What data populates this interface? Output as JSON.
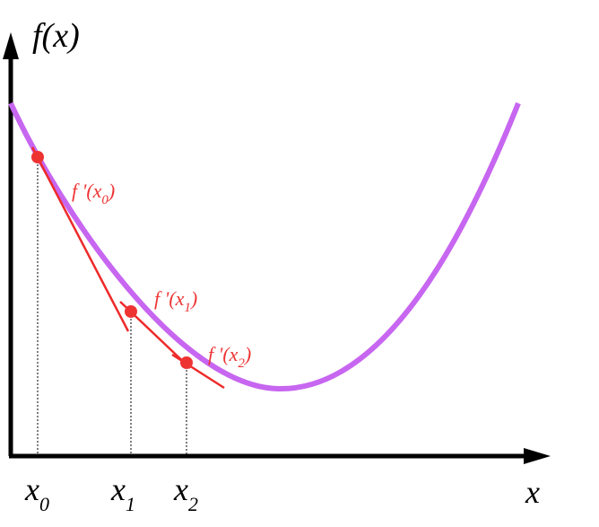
{
  "axes": {
    "y_label": "f(x)",
    "x_label": "x"
  },
  "points": [
    {
      "label": {
        "main": "x",
        "sub": "0"
      },
      "tangent_label": {
        "prefix": "f '(x",
        "sub": "0",
        "suffix": ")"
      }
    },
    {
      "label": {
        "main": "x",
        "sub": "1"
      },
      "tangent_label": {
        "prefix": "f '(x",
        "sub": "1",
        "suffix": ")"
      }
    },
    {
      "label": {
        "main": "x",
        "sub": "2"
      },
      "tangent_label": {
        "prefix": "f '(x",
        "sub": "2",
        "suffix": ")"
      }
    }
  ]
}
